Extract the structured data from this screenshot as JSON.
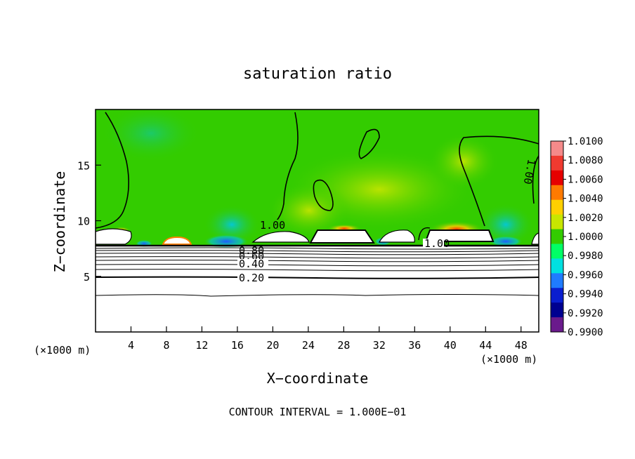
{
  "chart_data": {
    "type": "heatmap",
    "title": "saturation ratio",
    "xlabel": "X−coordinate",
    "ylabel": "Z−coordinate",
    "x_unit": "(×1000 m)",
    "y_unit": "(×1000 m)",
    "footer": "CONTOUR INTERVAL = 1.000E−01",
    "xlim": [
      0,
      50
    ],
    "ylim": [
      0,
      20
    ],
    "xticks": [
      4,
      8,
      12,
      16,
      20,
      24,
      28,
      32,
      36,
      40,
      44,
      48
    ],
    "yticks": [
      5,
      10,
      15
    ],
    "colorbar": {
      "levels": [
        "1.0100",
        "1.0080",
        "1.0060",
        "1.0040",
        "1.0020",
        "1.0000",
        "0.9980",
        "0.9960",
        "0.9940",
        "0.9920",
        "0.9900"
      ],
      "colors": [
        "#f58a8a",
        "#f03a30",
        "#e60000",
        "#ff7a00",
        "#ffd000",
        "#c8e600",
        "#33cc00",
        "#00ff66",
        "#00e0e0",
        "#1f7bff",
        "#0a1ecf",
        "#000090",
        "#6a1a8c"
      ]
    },
    "dominant_value": 1.0,
    "contour_labels": [
      "1.00",
      "1.00",
      "1.00",
      "0.80",
      "0.60",
      "0.40",
      "0.20"
    ],
    "notes_visible": [
      "green field ≈ 1.0000 above ~8 km; stratified contours 0.2–0.9 below ~8 km"
    ]
  }
}
